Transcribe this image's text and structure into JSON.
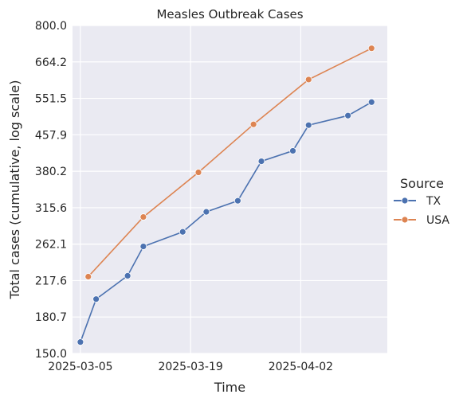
{
  "chart_data": {
    "type": "line",
    "title": "Measles Outbreak Cases",
    "xlabel": "Time",
    "ylabel": "Total cases (cumulative, log scale)",
    "yscale": "log",
    "ylim": [
      150,
      800
    ],
    "xlim": [
      "2025-03-04",
      "2025-04-13"
    ],
    "x_ticks": [
      "2025-03-05",
      "2025-03-19",
      "2025-04-02"
    ],
    "y_ticks": [
      "150.0",
      "180.7",
      "217.6",
      "262.1",
      "315.6",
      "380.2",
      "457.9",
      "551.5",
      "664.2",
      "800.0"
    ],
    "grid": true,
    "legend": {
      "title": "Source",
      "placement": "right"
    },
    "series": [
      {
        "name": "TX",
        "color": "#4c72b0",
        "x": [
          "2025-03-05",
          "2025-03-07",
          "2025-03-11",
          "2025-03-13",
          "2025-03-18",
          "2025-03-21",
          "2025-03-25",
          "2025-03-28",
          "2025-04-01",
          "2025-04-03",
          "2025-04-08",
          "2025-04-11"
        ],
        "values": [
          159,
          198,
          223,
          259,
          279,
          309,
          327,
          400,
          422,
          481,
          505,
          541
        ]
      },
      {
        "name": "USA",
        "color": "#dd8452",
        "x": [
          "2025-03-06",
          "2025-03-13",
          "2025-03-20",
          "2025-03-27",
          "2025-04-03",
          "2025-04-11"
        ],
        "values": [
          222,
          301,
          378,
          483,
          607,
          712
        ]
      }
    ]
  }
}
